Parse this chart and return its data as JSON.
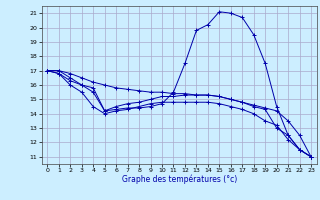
{
  "xlabel": "Graphe des températures (°c)",
  "background_color": "#cceeff",
  "grid_color": "#aaaacc",
  "line_color": "#0000aa",
  "x_ticks": [
    0,
    1,
    2,
    3,
    4,
    5,
    6,
    7,
    8,
    9,
    10,
    11,
    12,
    13,
    14,
    15,
    16,
    17,
    18,
    19,
    20,
    21,
    22,
    23
  ],
  "y_ticks": [
    11,
    12,
    13,
    14,
    15,
    16,
    17,
    18,
    19,
    20,
    21
  ],
  "xlim": [
    -0.5,
    23.5
  ],
  "ylim": [
    10.5,
    21.5
  ],
  "series": [
    {
      "x": [
        0,
        1,
        2,
        3,
        4,
        5,
        6,
        7,
        8,
        9,
        10,
        11,
        12,
        13,
        14,
        15,
        16,
        17,
        18,
        19,
        20,
        21,
        22,
        23
      ],
      "y": [
        17,
        17,
        16.5,
        16,
        15.8,
        14.2,
        14.3,
        14.4,
        14.4,
        14.5,
        14.7,
        15.5,
        17.5,
        19.8,
        20.2,
        21.1,
        21.0,
        20.7,
        19.5,
        17.5,
        14.5,
        12.5,
        11.5,
        11
      ]
    },
    {
      "x": [
        0,
        1,
        2,
        3,
        4,
        5,
        6,
        7,
        8,
        9,
        10,
        11,
        12,
        13,
        14,
        15,
        16,
        17,
        18,
        19,
        20,
        21,
        22,
        23
      ],
      "y": [
        17,
        17,
        16.8,
        16.5,
        16.2,
        16.0,
        15.8,
        15.7,
        15.6,
        15.5,
        15.5,
        15.4,
        15.4,
        15.3,
        15.3,
        15.2,
        15.0,
        14.8,
        14.6,
        14.4,
        14.2,
        13.5,
        12.5,
        11
      ]
    },
    {
      "x": [
        0,
        1,
        2,
        3,
        4,
        5,
        6,
        7,
        8,
        9,
        10,
        11,
        12,
        13,
        14,
        15,
        16,
        17,
        18,
        19,
        20,
        21,
        22,
        23
      ],
      "y": [
        17,
        16.8,
        16.3,
        16.0,
        15.5,
        14.2,
        14.5,
        14.7,
        14.8,
        15.0,
        15.2,
        15.2,
        15.3,
        15.3,
        15.3,
        15.2,
        15.0,
        14.8,
        14.5,
        14.3,
        13.0,
        12.5,
        11.5,
        11
      ]
    },
    {
      "x": [
        0,
        1,
        2,
        3,
        4,
        5,
        6,
        7,
        8,
        9,
        10,
        11,
        12,
        13,
        14,
        15,
        16,
        17,
        18,
        19,
        20,
        21,
        22,
        23
      ],
      "y": [
        17,
        16.8,
        16.0,
        15.5,
        14.5,
        14.0,
        14.2,
        14.3,
        14.5,
        14.7,
        14.8,
        14.8,
        14.8,
        14.8,
        14.8,
        14.7,
        14.5,
        14.3,
        14.0,
        13.5,
        13.2,
        12.2,
        11.5,
        11
      ]
    }
  ]
}
